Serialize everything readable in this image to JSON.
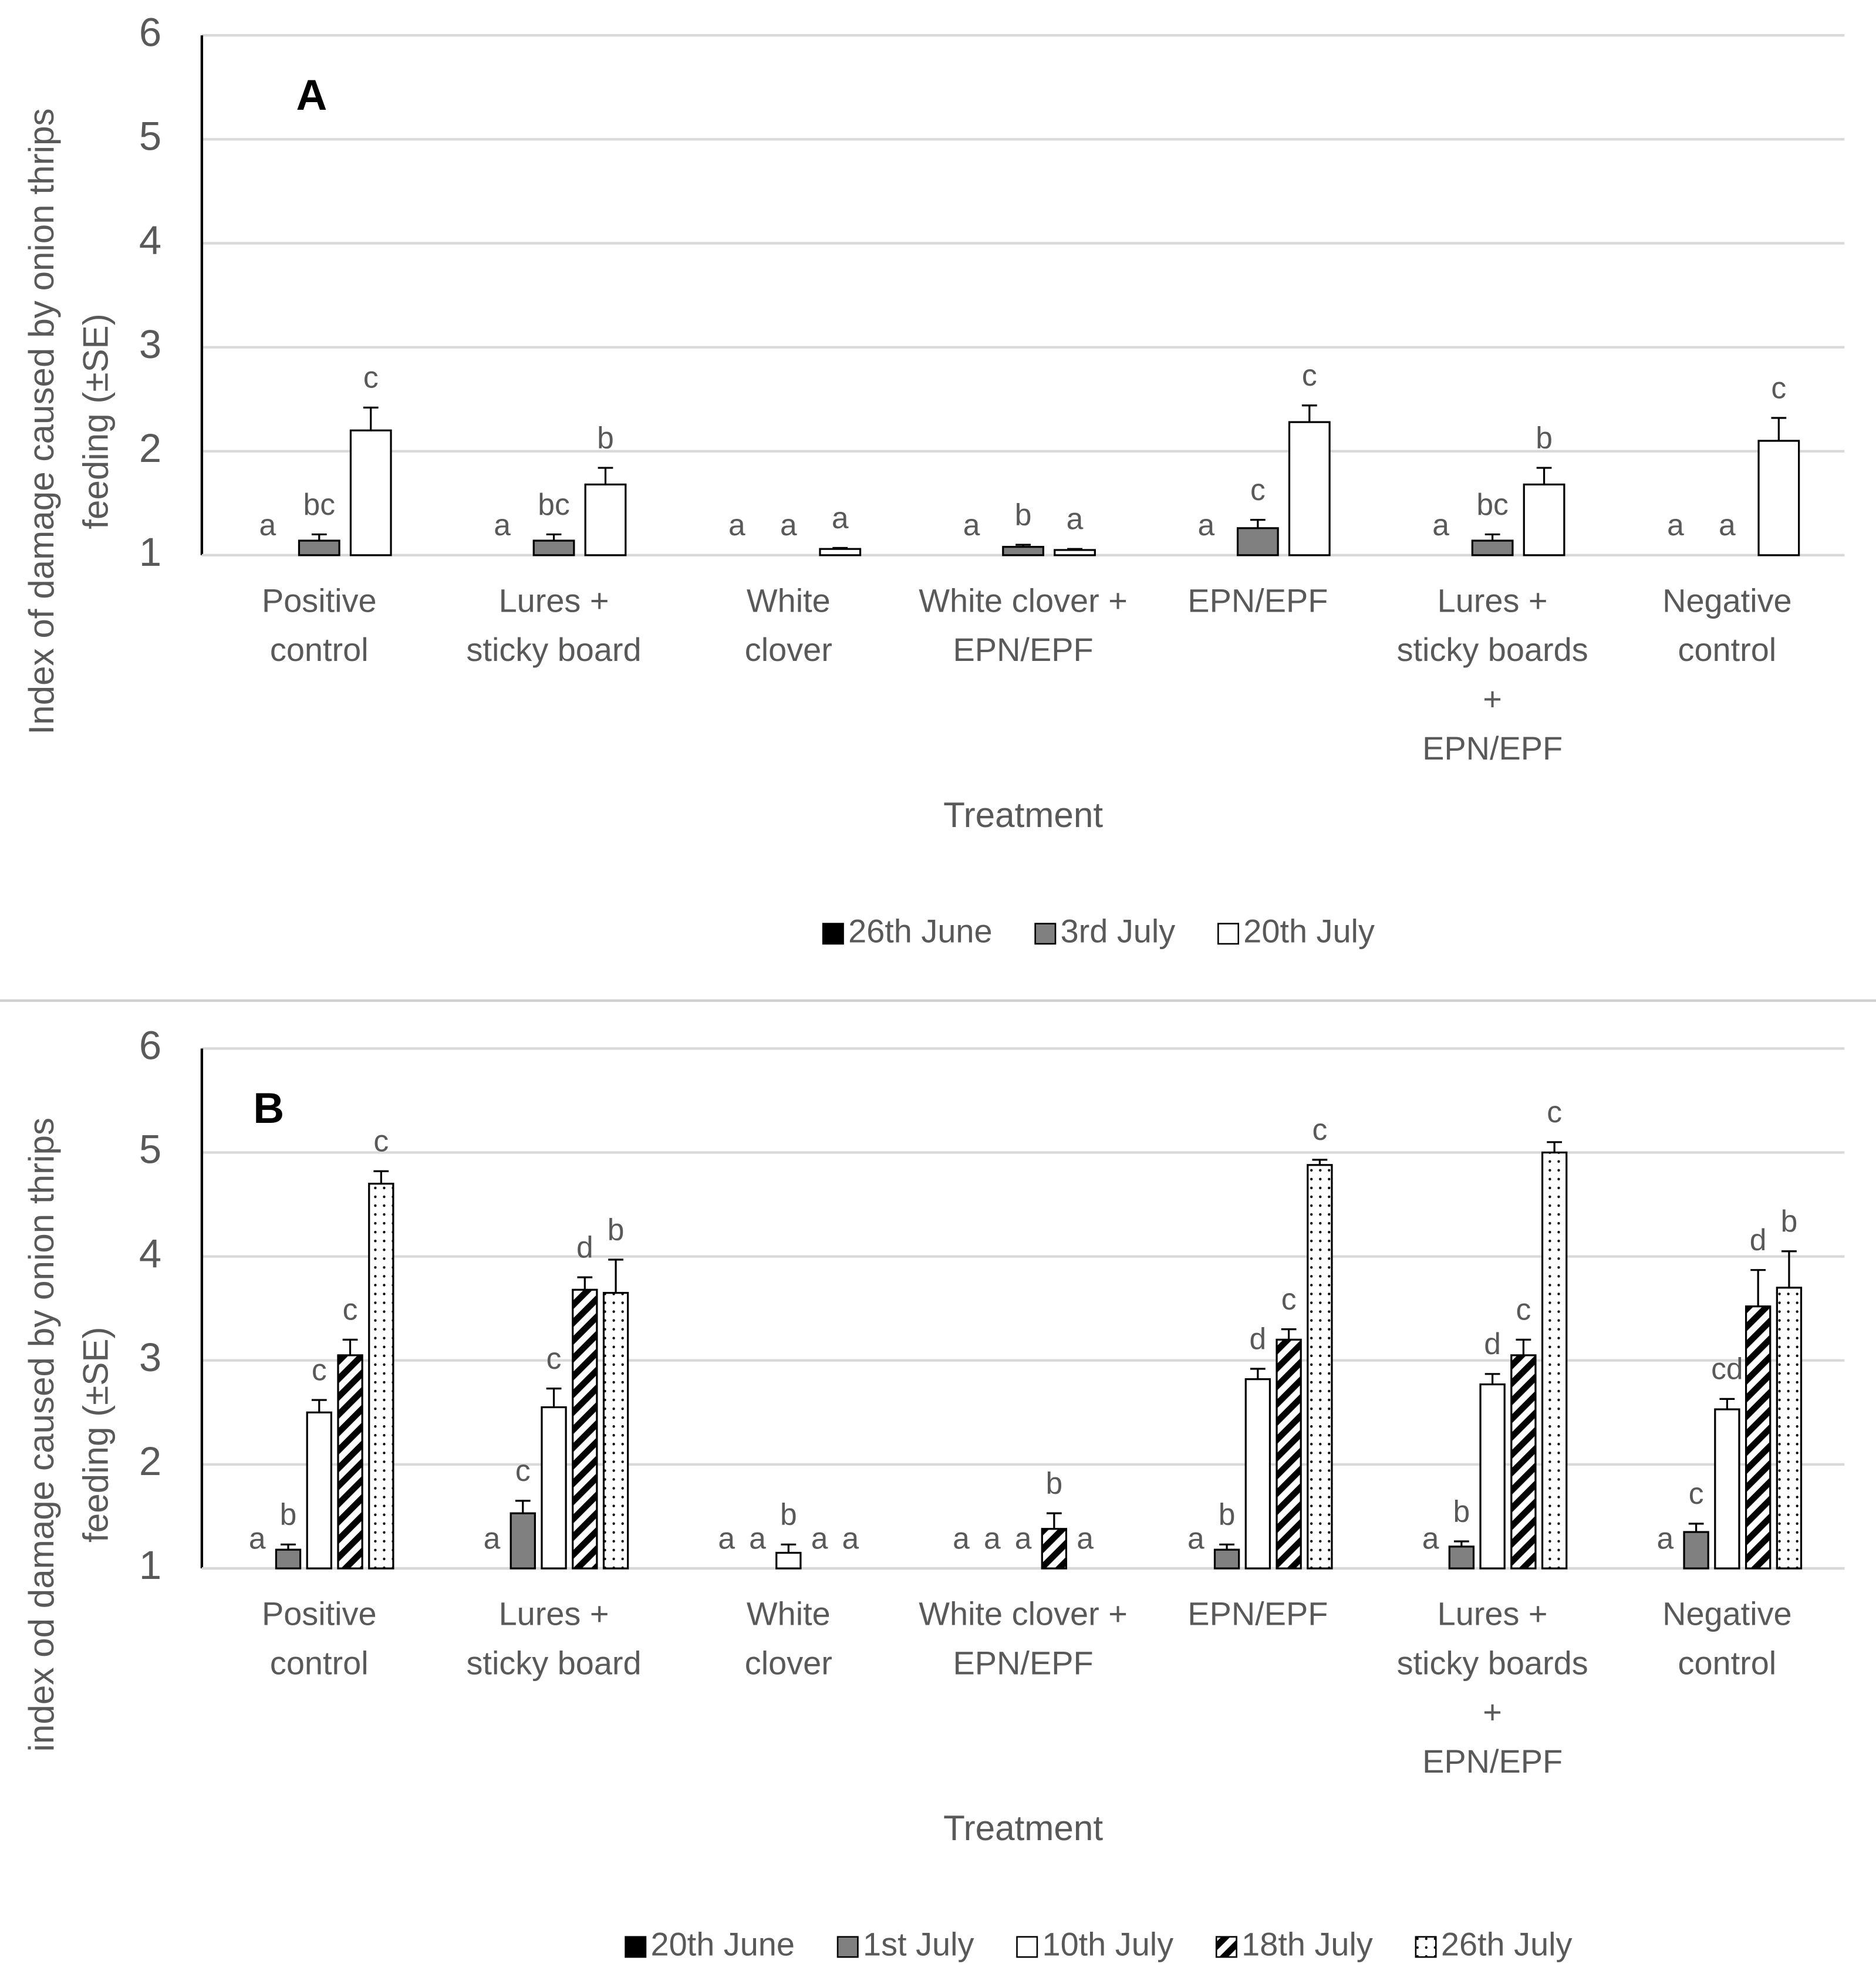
{
  "chart_data": [
    {
      "type": "bar",
      "panel_label": "A",
      "ylabel": [
        "Index of damage caused by onion thrips",
        "feeding (±SE)"
      ],
      "xlabel": "Treatment",
      "categories": [
        [
          "Positive",
          "control"
        ],
        [
          "Lures +",
          "sticky board"
        ],
        [
          "White",
          "clover"
        ],
        [
          "White clover +",
          "EPN/EPF"
        ],
        [
          "EPN/EPF"
        ],
        [
          "Lures +",
          "sticky boards",
          "+",
          "EPN/EPF"
        ],
        [
          "Negative",
          "control"
        ]
      ],
      "ylim": [
        1,
        6
      ],
      "yticks": [
        1,
        2,
        3,
        4,
        5,
        6
      ],
      "grid": true,
      "series": [
        {
          "name": "26th June",
          "color": "#000000",
          "pattern": "solid",
          "values": [
            1,
            1,
            1,
            1,
            1,
            1,
            1
          ],
          "errors": [
            0,
            0,
            0,
            0,
            0,
            0,
            0
          ],
          "letters": [
            "a",
            "a",
            "a",
            "a",
            "a",
            "a",
            "a"
          ]
        },
        {
          "name": "3rd July",
          "color": "#808080",
          "pattern": "solid",
          "values": [
            1.14,
            1.14,
            1,
            1.08,
            1.26,
            1.14,
            1
          ],
          "errors": [
            0.06,
            0.06,
            0,
            0.02,
            0.08,
            0.06,
            0
          ],
          "letters": [
            "bc",
            "bc",
            "a",
            "b",
            "c",
            "bc",
            "a"
          ]
        },
        {
          "name": "20th July",
          "color": "#ffffff",
          "pattern": "solid",
          "values": [
            2.2,
            1.68,
            1.06,
            1.05,
            2.28,
            1.68,
            2.1
          ],
          "errors": [
            0.22,
            0.16,
            0.01,
            0.01,
            0.16,
            0.16,
            0.22
          ],
          "letters": [
            "c",
            "b",
            "a",
            "a",
            "c",
            "b",
            "c"
          ]
        }
      ]
    },
    {
      "type": "bar",
      "panel_label": "B",
      "ylabel": [
        "index od damage caused by onion thrips",
        "feeding (±SE)"
      ],
      "xlabel": "Treatment",
      "categories": [
        [
          "Positive",
          "control"
        ],
        [
          "Lures +",
          "sticky board"
        ],
        [
          "White",
          "clover"
        ],
        [
          "White clover +",
          "EPN/EPF"
        ],
        [
          "EPN/EPF"
        ],
        [
          "Lures +",
          "sticky boards",
          "+",
          "EPN/EPF"
        ],
        [
          "Negative",
          "control"
        ]
      ],
      "ylim": [
        1,
        6
      ],
      "yticks": [
        1,
        2,
        3,
        4,
        5,
        6
      ],
      "grid": true,
      "series": [
        {
          "name": "20th June",
          "color": "#000000",
          "pattern": "solid",
          "values": [
            1,
            1,
            1,
            1,
            1,
            1,
            1
          ],
          "errors": [
            0,
            0,
            0,
            0,
            0,
            0,
            0
          ],
          "letters": [
            "a",
            "a",
            "a",
            "a",
            "a",
            "a",
            "a"
          ]
        },
        {
          "name": "1st July",
          "color": "#808080",
          "pattern": "solid",
          "values": [
            1.18,
            1.53,
            1,
            1,
            1.18,
            1.21,
            1.35
          ],
          "errors": [
            0.05,
            0.12,
            0,
            0,
            0.05,
            0.05,
            0.08
          ],
          "letters": [
            "b",
            "c",
            "a",
            "a",
            "b",
            "b",
            "c"
          ]
        },
        {
          "name": "10th July",
          "color": "#ffffff",
          "pattern": "solid",
          "values": [
            2.5,
            2.55,
            1.15,
            1,
            2.82,
            2.77,
            2.53
          ],
          "errors": [
            0.12,
            0.18,
            0.08,
            0,
            0.1,
            0.1,
            0.1
          ],
          "letters": [
            "c",
            "c",
            "b",
            "a",
            "d",
            "d",
            "cd"
          ]
        },
        {
          "name": "18th July",
          "color": "#ffffff",
          "pattern": "hatch",
          "values": [
            3.05,
            3.68,
            1,
            1.38,
            3.2,
            3.05,
            3.52
          ],
          "errors": [
            0.15,
            0.12,
            0,
            0.15,
            0.1,
            0.15,
            0.35
          ],
          "letters": [
            "c",
            "d",
            "a",
            "b",
            "c",
            "c",
            "d"
          ]
        },
        {
          "name": "26th July",
          "color": "#ffffff",
          "pattern": "dots",
          "values": [
            4.7,
            3.65,
            1,
            1,
            4.88,
            5.0,
            3.7
          ],
          "errors": [
            0.12,
            0.32,
            0,
            0,
            0.05,
            0.1,
            0.35
          ],
          "letters": [
            "c",
            "b",
            "a",
            "a",
            "c",
            "c",
            "b"
          ]
        }
      ]
    }
  ]
}
